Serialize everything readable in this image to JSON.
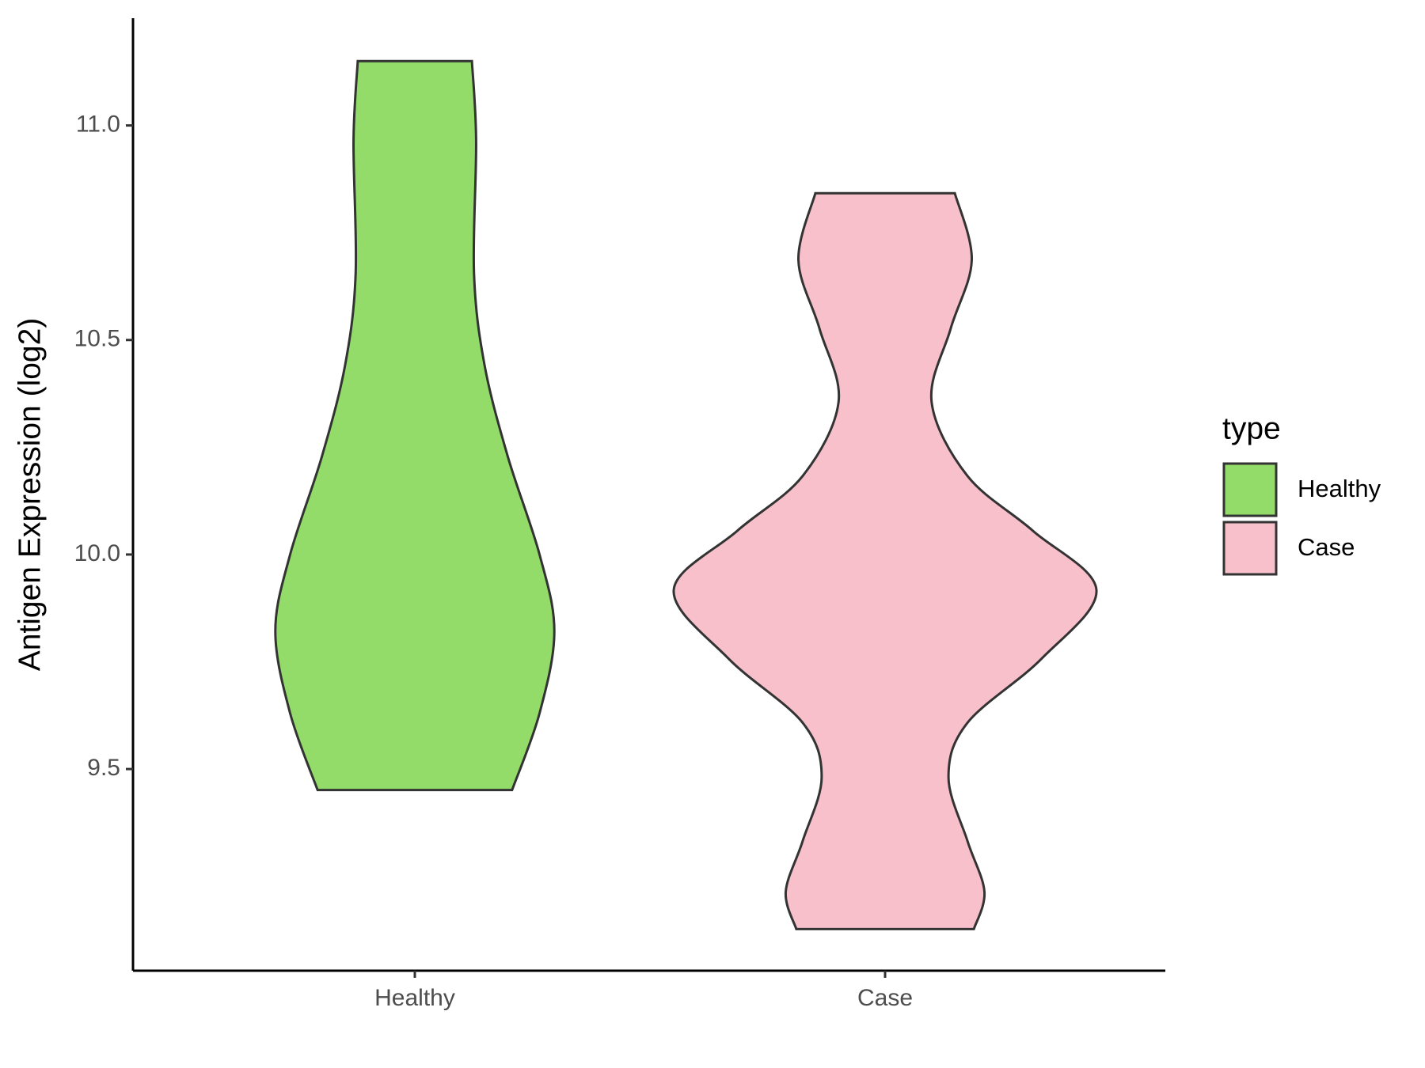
{
  "chart_data": {
    "type": "violin",
    "y_label": "Antigen Expression (log2)",
    "legend_title": "type",
    "categories": [
      "Healthy",
      "Case"
    ],
    "ylim": [
      9.03,
      11.25
    ],
    "yticks": [
      {
        "value": 9.5,
        "label": "9.5"
      },
      {
        "value": 10.0,
        "label": "10.0"
      },
      {
        "value": 10.5,
        "label": "10.5"
      },
      {
        "value": 11.0,
        "label": "11.0"
      }
    ],
    "legend_position": "right",
    "series": [
      {
        "name": "Healthy",
        "color": "#93dc6a",
        "y": [
          11.15,
          10.964,
          10.655,
          10.441,
          10.228,
          10.0,
          9.821,
          9.63,
          9.451
        ],
        "density": [
          0.27,
          0.29,
          0.28,
          0.33,
          0.44,
          0.59,
          0.66,
          0.59,
          0.46
        ]
      },
      {
        "name": "Case",
        "color": "#f7c0cb",
        "y": [
          10.842,
          10.686,
          10.526,
          10.356,
          10.183,
          10.055,
          9.917,
          9.757,
          9.608,
          9.481,
          9.332,
          9.214,
          9.127
        ],
        "density": [
          0.33,
          0.41,
          0.31,
          0.22,
          0.39,
          0.7,
          1.0,
          0.74,
          0.39,
          0.3,
          0.39,
          0.47,
          0.42
        ]
      }
    ]
  }
}
